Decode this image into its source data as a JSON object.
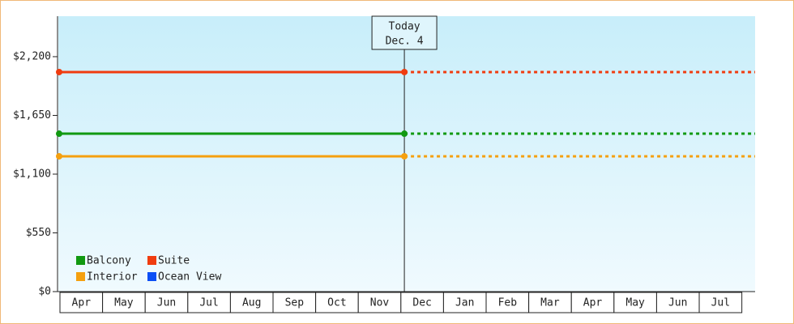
{
  "chart_data": {
    "type": "line",
    "categories": [
      "Apr",
      "May",
      "Jun",
      "Jul",
      "Aug",
      "Sep",
      "Oct",
      "Nov",
      "Dec",
      "Jan",
      "Feb",
      "Mar",
      "Apr",
      "May",
      "Jun",
      "Jul"
    ],
    "x": [
      0,
      8.1
    ],
    "xlim": [
      0,
      16.33
    ],
    "ylim": [
      0,
      2579
    ],
    "yticks": [
      {
        "value": 0,
        "label": "$0"
      },
      {
        "value": 550,
        "label": "$550"
      },
      {
        "value": 1100,
        "label": "$1,100"
      },
      {
        "value": 1650,
        "label": "$1,650"
      },
      {
        "value": 2200,
        "label": "$2,200"
      }
    ],
    "annotation": {
      "lines": [
        "Today",
        "Dec. 4"
      ],
      "x": 8.1
    },
    "series": [
      {
        "name": "Balcony",
        "color": "#119911",
        "values": [
          1479,
          1479
        ]
      },
      {
        "name": "Suite",
        "color": "#f03c0f",
        "values": [
          2056,
          2056
        ]
      },
      {
        "name": "Interior",
        "color": "#f5a00f",
        "values": [
          1267,
          1267
        ]
      },
      {
        "name": "Ocean View",
        "color": "#0a4ef5",
        "values": [
          null,
          null
        ]
      }
    ]
  }
}
